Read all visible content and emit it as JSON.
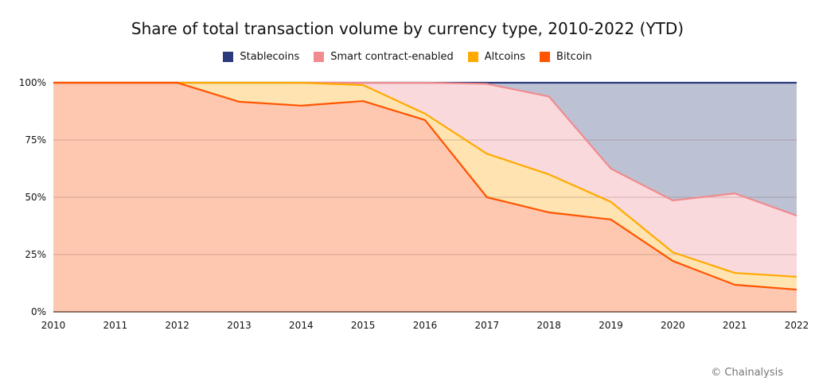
{
  "chart_data": {
    "type": "area",
    "stacked": true,
    "title": "Share of total transaction volume by currency type, 2010-2022 (YTD)",
    "xlabel": "",
    "ylabel": "",
    "x": [
      "2010",
      "2011",
      "2012",
      "2013",
      "2014",
      "2015",
      "2016",
      "2017",
      "2018",
      "2019",
      "2020",
      "2021",
      "2022"
    ],
    "yticks": [
      "0%",
      "25%",
      "50%",
      "75%",
      "100%"
    ],
    "ylim": [
      0,
      100
    ],
    "grid": true,
    "legend_position": "top-center",
    "series": [
      {
        "name": "Bitcoin",
        "line": "#ff5500",
        "fill": "#fec8b0",
        "values": [
          100,
          100,
          100,
          91.7,
          90,
          92,
          83.7,
          50,
          43.4,
          40.3,
          22.2,
          11.8,
          9.7
        ]
      },
      {
        "name": "Altcoins",
        "line": "#ffaa00",
        "fill": "#ffe3b0",
        "values": [
          0,
          0,
          0,
          8.3,
          10,
          7,
          2.8,
          19,
          16.6,
          7.7,
          3.8,
          5.2,
          5.6
        ]
      },
      {
        "name": "Smart contract-enabled",
        "line": "#f08c8f",
        "fill": "#fad9dd",
        "values": [
          0,
          0,
          0,
          0,
          0,
          1,
          13.5,
          30.5,
          34,
          14.5,
          22.6,
          34.7,
          26.7
        ]
      },
      {
        "name": "Stablecoins",
        "line": "#2b3a7a",
        "fill": "#bcc2d3",
        "values": [
          0,
          0,
          0,
          0,
          0,
          0,
          0,
          0.5,
          6,
          37.5,
          51.4,
          48.3,
          58
        ]
      }
    ],
    "legend_order": [
      "Stablecoins",
      "Smart contract-enabled",
      "Altcoins",
      "Bitcoin"
    ]
  },
  "credit": "© Chainalysis"
}
